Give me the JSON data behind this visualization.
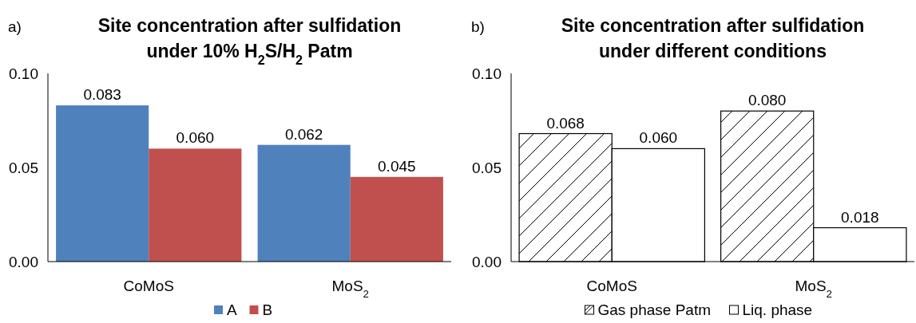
{
  "chart_data": [
    {
      "type": "bar",
      "title": "Site concentration after sulfidation under 10% H$_{2}$S/H$_{2}$ Patm",
      "annotations": [
        "a)"
      ],
      "categories": [
        "CoMoS",
        "MoS$_{2}$"
      ],
      "series": [
        {
          "name": "A",
          "color": "#4f81bd",
          "values": [
            0.083,
            0.062
          ],
          "value_labels": [
            "0.083",
            "0.062"
          ]
        },
        {
          "name": "B",
          "color": "#c0504d",
          "values": [
            0.06,
            0.045
          ],
          "value_labels": [
            "0.060",
            "0.045"
          ]
        }
      ],
      "ylim": [
        0,
        0.1
      ],
      "yticks": [
        {
          "value": 0,
          "label": "0.00"
        },
        {
          "value": 0.05,
          "label": "0.05"
        },
        {
          "value": 0.1,
          "label": "0.10"
        }
      ],
      "legend": "bottom",
      "grid": false
    },
    {
      "type": "bar",
      "title": "Site concentration after  sulfidation under different conditions",
      "annotations": [
        "b)"
      ],
      "categories": [
        "CoMoS",
        "MoS$_{2}$"
      ],
      "series": [
        {
          "name": "Gas phase Patm",
          "color": "#000000",
          "values": [
            0.068,
            0.08
          ],
          "value_labels": [
            "0.068",
            "0.080"
          ]
        },
        {
          "name": "Liq. phase",
          "color": "#ffffff",
          "values": [
            0.06,
            0.018
          ],
          "value_labels": [
            "0.060",
            "0.018"
          ]
        }
      ],
      "ylim": [
        0,
        0.1
      ],
      "yticks": [
        {
          "value": 0,
          "label": "0.00"
        },
        {
          "value": 0.05,
          "label": "0.05"
        },
        {
          "value": 0.1,
          "label": "0.10"
        }
      ],
      "legend": "bottom",
      "grid": false
    }
  ]
}
